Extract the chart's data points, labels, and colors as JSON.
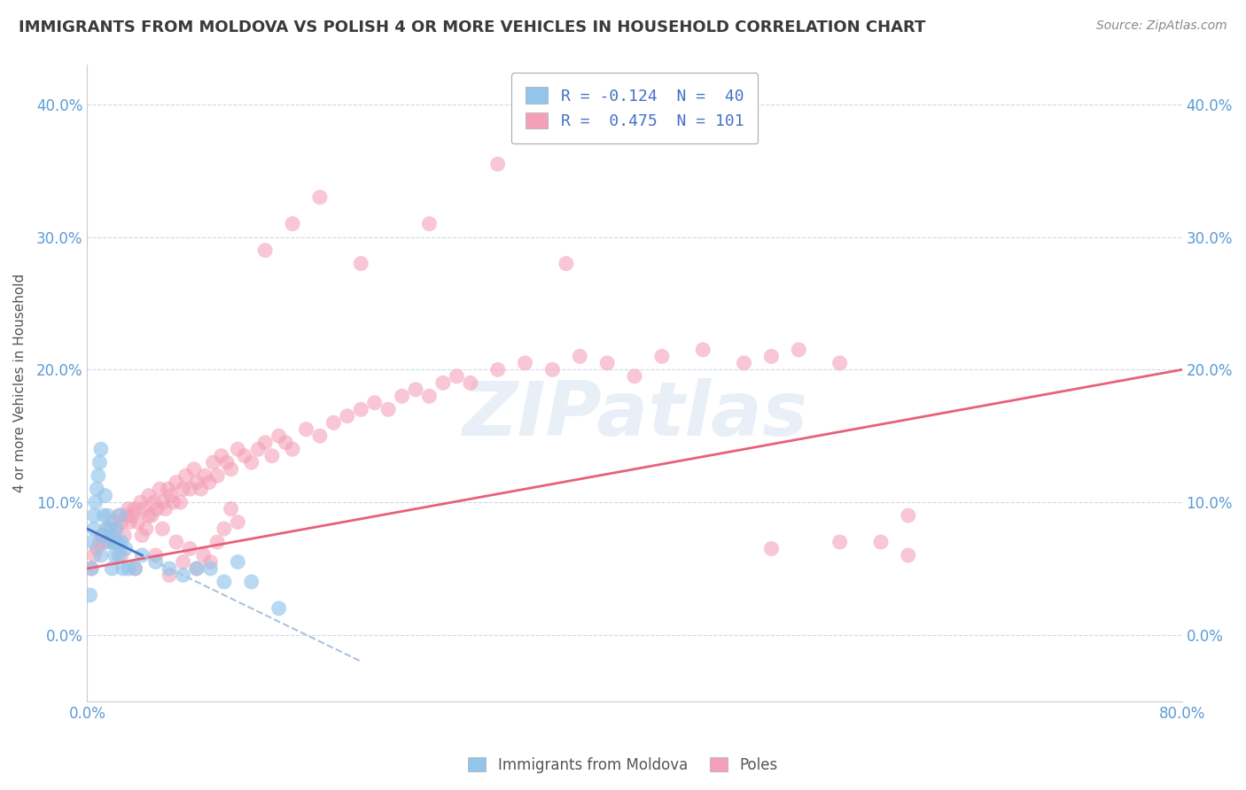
{
  "title": "IMMIGRANTS FROM MOLDOVA VS POLISH 4 OR MORE VEHICLES IN HOUSEHOLD CORRELATION CHART",
  "source": "Source: ZipAtlas.com",
  "ylabel": "4 or more Vehicles in Household",
  "ytick_vals": [
    0,
    10,
    20,
    30,
    40
  ],
  "ytick_labels": [
    "0.0%",
    "10.0%",
    "20.0%",
    "30.0%",
    "40.0%"
  ],
  "xtick_vals": [
    0,
    80
  ],
  "xtick_labels": [
    "0.0%",
    "80.0%"
  ],
  "xlim": [
    0,
    80
  ],
  "ylim": [
    -5,
    43
  ],
  "legend1_label": "R = -0.124  N =  40",
  "legend2_label": "R =  0.475  N = 101",
  "blue_color": "#92c5ea",
  "pink_color": "#f4a0b8",
  "blue_line_color": "#4472c4",
  "pink_line_color": "#e8607a",
  "dashed_color": "#a8c4e0",
  "watermark": "ZIPatlas",
  "bottom_legend1": "Immigrants from Moldova",
  "bottom_legend2": "Poles",
  "title_fontsize": 13,
  "source_fontsize": 10,
  "tick_fontsize": 12,
  "legend_fontsize": 13,
  "blue_x": [
    0.2,
    0.3,
    0.4,
    0.5,
    0.5,
    0.6,
    0.7,
    0.8,
    0.9,
    1.0,
    1.0,
    1.1,
    1.2,
    1.3,
    1.4,
    1.5,
    1.6,
    1.7,
    1.8,
    1.9,
    2.0,
    2.1,
    2.2,
    2.3,
    2.4,
    2.5,
    2.6,
    2.8,
    3.0,
    3.5,
    4.0,
    5.0,
    6.0,
    7.0,
    8.0,
    9.0,
    10.0,
    11.0,
    12.0,
    14.0
  ],
  "blue_y": [
    3.0,
    5.0,
    7.0,
    8.0,
    9.0,
    10.0,
    11.0,
    12.0,
    13.0,
    14.0,
    6.0,
    7.5,
    9.0,
    10.5,
    8.0,
    9.0,
    7.0,
    8.0,
    5.0,
    7.0,
    6.0,
    8.0,
    7.0,
    6.0,
    9.0,
    7.0,
    5.0,
    6.5,
    5.0,
    5.0,
    6.0,
    5.5,
    5.0,
    4.5,
    5.0,
    5.0,
    4.0,
    5.5,
    4.0,
    2.0
  ],
  "pink_x": [
    0.3,
    0.5,
    0.7,
    0.9,
    1.1,
    1.3,
    1.5,
    1.7,
    1.9,
    2.1,
    2.3,
    2.5,
    2.7,
    2.9,
    3.1,
    3.3,
    3.5,
    3.7,
    3.9,
    4.1,
    4.3,
    4.5,
    4.7,
    4.9,
    5.1,
    5.3,
    5.5,
    5.7,
    5.9,
    6.1,
    6.3,
    6.5,
    6.8,
    7.0,
    7.2,
    7.5,
    7.8,
    8.0,
    8.3,
    8.6,
    8.9,
    9.2,
    9.5,
    9.8,
    10.2,
    10.5,
    11.0,
    11.5,
    12.0,
    12.5,
    13.0,
    13.5,
    14.0,
    14.5,
    15.0,
    16.0,
    17.0,
    18.0,
    19.0,
    20.0,
    21.0,
    22.0,
    23.0,
    24.0,
    25.0,
    26.0,
    27.0,
    28.0,
    30.0,
    32.0,
    34.0,
    36.0,
    38.0,
    40.0,
    42.0,
    45.0,
    48.0,
    50.0,
    52.0,
    55.0,
    58.0,
    60.0,
    2.0,
    2.5,
    3.0,
    3.5,
    4.0,
    4.5,
    5.0,
    5.5,
    6.0,
    6.5,
    7.0,
    7.5,
    8.0,
    8.5,
    9.0,
    9.5,
    10.0,
    10.5,
    11.0
  ],
  "pink_y": [
    5.0,
    6.0,
    6.5,
    7.0,
    7.5,
    7.0,
    8.0,
    7.5,
    8.5,
    8.0,
    9.0,
    8.5,
    7.5,
    9.0,
    8.5,
    9.0,
    9.5,
    8.5,
    10.0,
    9.5,
    8.0,
    10.5,
    9.0,
    10.0,
    9.5,
    11.0,
    10.0,
    9.5,
    11.0,
    10.5,
    10.0,
    11.5,
    10.0,
    11.0,
    12.0,
    11.0,
    12.5,
    11.5,
    11.0,
    12.0,
    11.5,
    13.0,
    12.0,
    13.5,
    13.0,
    12.5,
    14.0,
    13.5,
    13.0,
    14.0,
    14.5,
    13.5,
    15.0,
    14.5,
    14.0,
    15.5,
    15.0,
    16.0,
    16.5,
    17.0,
    17.5,
    17.0,
    18.0,
    18.5,
    18.0,
    19.0,
    19.5,
    19.0,
    20.0,
    20.5,
    20.0,
    21.0,
    20.5,
    19.5,
    21.0,
    21.5,
    20.5,
    21.0,
    21.5,
    20.5,
    7.0,
    9.0,
    7.0,
    6.0,
    9.5,
    5.0,
    7.5,
    9.0,
    6.0,
    8.0,
    4.5,
    7.0,
    5.5,
    6.5,
    5.0,
    6.0,
    5.5,
    7.0,
    8.0,
    9.5,
    8.5
  ],
  "extra_pink_x": [
    20.0,
    25.0,
    30.0,
    35.0,
    13.0,
    15.0,
    17.0,
    50.0,
    55.0,
    60.0
  ],
  "extra_pink_y": [
    28.0,
    31.0,
    35.5,
    28.0,
    29.0,
    31.0,
    33.0,
    6.5,
    7.0,
    6.0
  ]
}
